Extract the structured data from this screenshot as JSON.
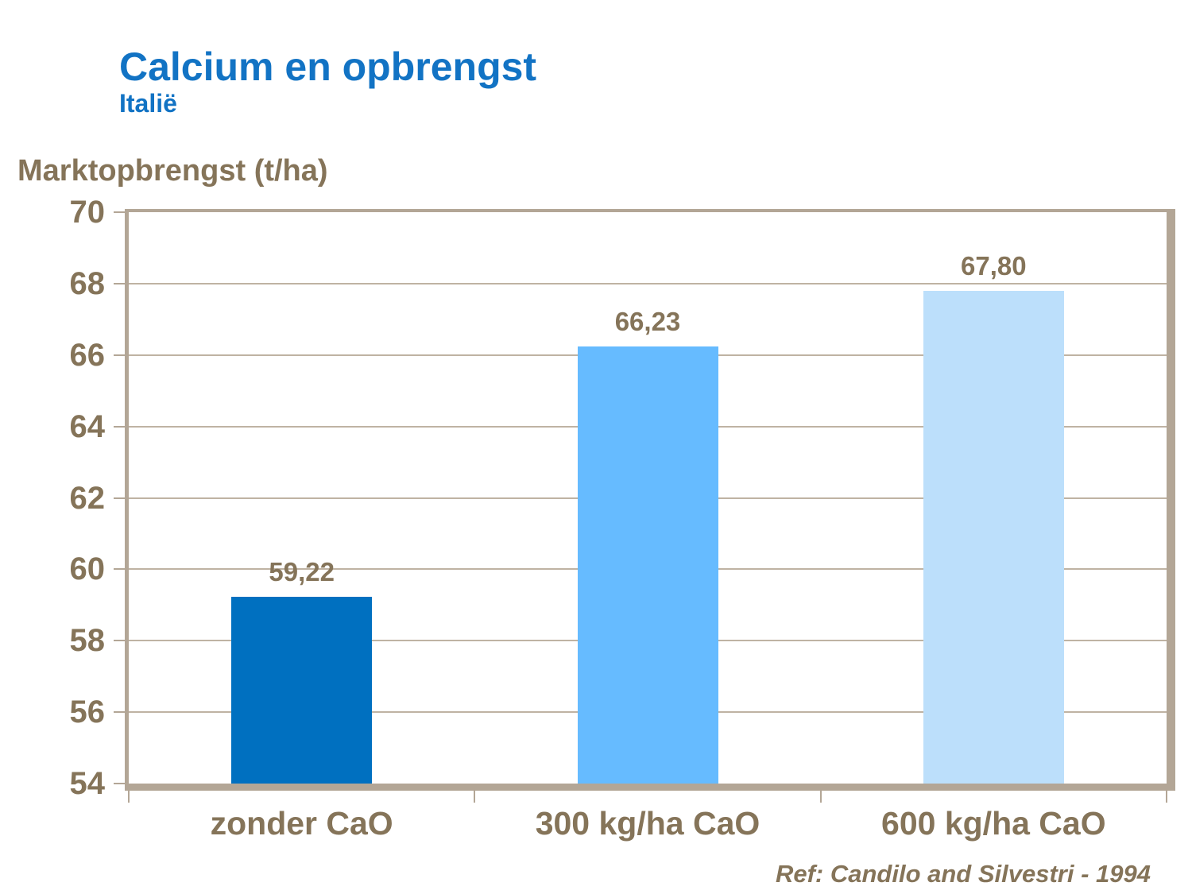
{
  "slide": {
    "title": "Calcium en opbrengst",
    "subtitle": "Italië",
    "reference": "Ref: Candilo and Silvestri - 1994"
  },
  "chart_data": {
    "type": "bar",
    "title": "Calcium en opbrengst",
    "subtitle": "Italië",
    "ylabel": "Marktopbrengst (t/ha)",
    "xlabel": "",
    "categories": [
      "zonder CaO",
      "300 kg/ha CaO",
      "600 kg/ha CaO"
    ],
    "values": [
      59.22,
      66.23,
      67.8
    ],
    "value_labels": [
      "59,22",
      "66,23",
      "67,80"
    ],
    "bar_colors": [
      "#0070C0",
      "#66BBFF",
      "#BCDFFB"
    ],
    "ylim": [
      54,
      70
    ],
    "yticks": [
      54,
      56,
      58,
      60,
      62,
      64,
      66,
      68,
      70
    ],
    "grid": true,
    "legend": false,
    "reference": "Ref: Candilo and Silvestri - 1994"
  },
  "colors": {
    "title_blue": "#1273C4",
    "text_brown": "#857459",
    "axis_tan": "#B3A696",
    "gridline_tan": "#BFB3A3",
    "background": "#FFFFFF"
  }
}
